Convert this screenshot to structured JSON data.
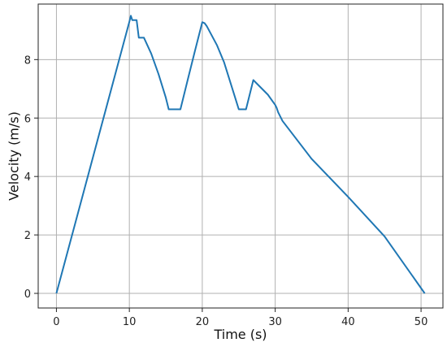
{
  "chart_data": {
    "type": "line",
    "xlabel": "Time (s)",
    "ylabel": "Velocity (m/s)",
    "xlim": [
      -2.5,
      53
    ],
    "ylim": [
      -0.5,
      9.9
    ],
    "xticks": [
      0,
      10,
      20,
      30,
      40,
      50
    ],
    "yticks": [
      0,
      2,
      4,
      6,
      8
    ],
    "grid": true,
    "line_color": "#1f77b4",
    "series": [
      {
        "x": [
          0,
          10,
          10.2,
          10.4,
          11,
          11.3,
          11.6,
          12,
          13,
          14,
          15,
          15.4,
          16,
          17,
          18,
          19,
          20,
          20.3,
          20.6,
          22,
          23,
          24,
          24.5,
          25,
          26,
          27,
          29,
          30,
          30.2,
          30.4,
          31,
          35,
          40,
          45,
          50.5
        ],
        "y": [
          0,
          9.3,
          9.5,
          9.35,
          9.35,
          8.75,
          8.75,
          8.75,
          8.2,
          7.5,
          6.7,
          6.3,
          6.3,
          6.3,
          7.3,
          8.3,
          9.28,
          9.25,
          9.15,
          8.5,
          7.9,
          7.1,
          6.7,
          6.3,
          6.3,
          7.3,
          6.8,
          6.45,
          6.35,
          6.2,
          5.9,
          4.6,
          3.3,
          1.95,
          0
        ]
      }
    ]
  }
}
